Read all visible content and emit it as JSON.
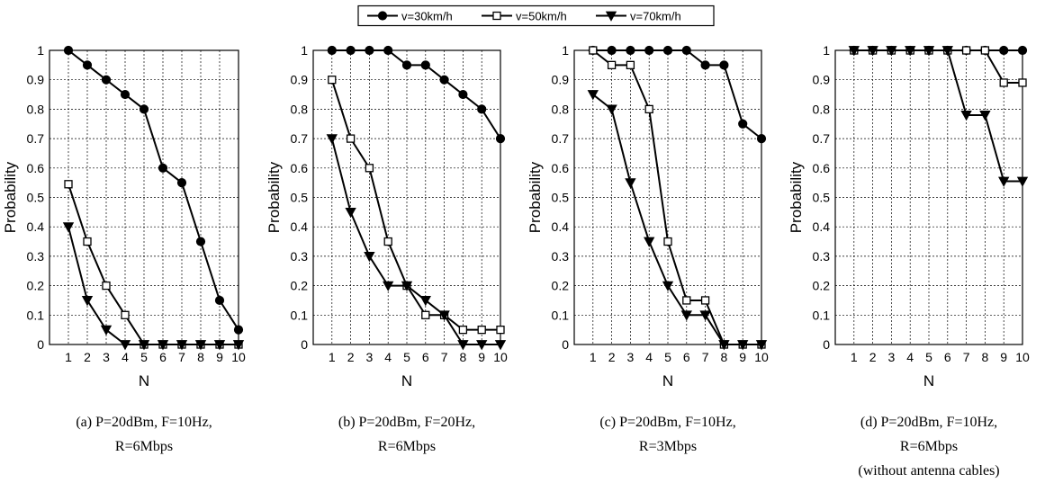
{
  "legend": {
    "entries": [
      {
        "label": "v=30km/h",
        "marker": "circle"
      },
      {
        "label": "v=50km/h",
        "marker": "square-open"
      },
      {
        "label": "v=70km/h",
        "marker": "triangle-down"
      }
    ],
    "placement": "top-center"
  },
  "chart_data": [
    {
      "type": "line",
      "title": "",
      "xlabel": "N",
      "ylabel": "Probability",
      "x": [
        1,
        2,
        3,
        4,
        5,
        6,
        7,
        8,
        9,
        10
      ],
      "xlim": [
        0,
        10
      ],
      "ylim": [
        0,
        1
      ],
      "yticks": [
        "0",
        "0.1",
        "0.2",
        "0.3",
        "0.4",
        "0.5",
        "0.6",
        "0.7",
        "0.8",
        "0.9",
        "1"
      ],
      "xticks": [
        "1",
        "2",
        "3",
        "4",
        "5",
        "6",
        "7",
        "8",
        "9",
        "10"
      ],
      "grid": true,
      "series": [
        {
          "name": "v=30km/h",
          "values": [
            1.0,
            0.95,
            0.9,
            0.85,
            0.8,
            0.6,
            0.55,
            0.35,
            0.15,
            0.05
          ]
        },
        {
          "name": "v=50km/h",
          "values": [
            0.545,
            0.35,
            0.2,
            0.1,
            0.0,
            0.0,
            0.0,
            0.0,
            0.0,
            0.0
          ]
        },
        {
          "name": "v=70km/h",
          "values": [
            0.4,
            0.15,
            0.05,
            0.0,
            0.0,
            0.0,
            0.0,
            0.0,
            0.0,
            0.0
          ]
        }
      ],
      "caption": [
        "(a) P=20dBm, F=10Hz,",
        "R=6Mbps"
      ]
    },
    {
      "type": "line",
      "title": "",
      "xlabel": "N",
      "ylabel": "Probability",
      "x": [
        1,
        2,
        3,
        4,
        5,
        6,
        7,
        8,
        9,
        10
      ],
      "xlim": [
        0,
        10
      ],
      "ylim": [
        0,
        1
      ],
      "yticks": [
        "0",
        "0.1",
        "0.2",
        "0.3",
        "0.4",
        "0.5",
        "0.6",
        "0.7",
        "0.8",
        "0.9",
        "1"
      ],
      "xticks": [
        "1",
        "2",
        "3",
        "4",
        "5",
        "6",
        "7",
        "8",
        "9",
        "10"
      ],
      "grid": true,
      "series": [
        {
          "name": "v=30km/h",
          "values": [
            1.0,
            1.0,
            1.0,
            1.0,
            0.95,
            0.95,
            0.9,
            0.85,
            0.8,
            0.7
          ]
        },
        {
          "name": "v=50km/h",
          "values": [
            0.9,
            0.7,
            0.6,
            0.35,
            0.2,
            0.1,
            0.1,
            0.05,
            0.05,
            0.05
          ]
        },
        {
          "name": "v=70km/h",
          "values": [
            0.7,
            0.45,
            0.3,
            0.2,
            0.2,
            0.15,
            0.1,
            0.0,
            0.0,
            0.0
          ]
        }
      ],
      "caption": [
        "(b) P=20dBm, F=20Hz,",
        "R=6Mbps"
      ]
    },
    {
      "type": "line",
      "title": "",
      "xlabel": "N",
      "ylabel": "Probability",
      "x": [
        1,
        2,
        3,
        4,
        5,
        6,
        7,
        8,
        9,
        10
      ],
      "xlim": [
        0,
        10
      ],
      "ylim": [
        0,
        1
      ],
      "yticks": [
        "0",
        "0.1",
        "0.2",
        "0.3",
        "0.4",
        "0.5",
        "0.6",
        "0.7",
        "0.8",
        "0.9",
        "1"
      ],
      "xticks": [
        "1",
        "2",
        "3",
        "4",
        "5",
        "6",
        "7",
        "8",
        "9",
        "10"
      ],
      "grid": true,
      "series": [
        {
          "name": "v=30km/h",
          "values": [
            1.0,
            1.0,
            1.0,
            1.0,
            1.0,
            1.0,
            0.95,
            0.95,
            0.75,
            0.7
          ]
        },
        {
          "name": "v=50km/h",
          "values": [
            1.0,
            0.95,
            0.95,
            0.8,
            0.35,
            0.15,
            0.15,
            0.0,
            0.0,
            0.0
          ]
        },
        {
          "name": "v=70km/h",
          "values": [
            0.85,
            0.8,
            0.55,
            0.35,
            0.2,
            0.1,
            0.1,
            0.0,
            0.0,
            0.0
          ]
        }
      ],
      "caption": [
        "(c) P=20dBm, F=10Hz,",
        "R=3Mbps"
      ]
    },
    {
      "type": "line",
      "title": "",
      "xlabel": "N",
      "ylabel": "Probability",
      "x": [
        1,
        2,
        3,
        4,
        5,
        6,
        7,
        8,
        9,
        10
      ],
      "xlim": [
        0,
        10
      ],
      "ylim": [
        0,
        1
      ],
      "yticks": [
        "0",
        "0.1",
        "0.2",
        "0.3",
        "0.4",
        "0.5",
        "0.6",
        "0.7",
        "0.8",
        "0.9",
        "1"
      ],
      "xticks": [
        "1",
        "2",
        "3",
        "4",
        "5",
        "6",
        "7",
        "8",
        "9",
        "10"
      ],
      "grid": true,
      "series": [
        {
          "name": "v=30km/h",
          "values": [
            1.0,
            1.0,
            1.0,
            1.0,
            1.0,
            1.0,
            1.0,
            1.0,
            1.0,
            1.0
          ]
        },
        {
          "name": "v=50km/h",
          "values": [
            1.0,
            1.0,
            1.0,
            1.0,
            1.0,
            1.0,
            1.0,
            1.0,
            0.89,
            0.89
          ]
        },
        {
          "name": "v=70km/h",
          "values": [
            1.0,
            1.0,
            1.0,
            1.0,
            1.0,
            1.0,
            0.78,
            0.78,
            0.555,
            0.555
          ]
        }
      ],
      "caption": [
        "(d) P=20dBm, F=10Hz,",
        "R=6Mbps",
        "(without antenna cables)"
      ]
    }
  ]
}
